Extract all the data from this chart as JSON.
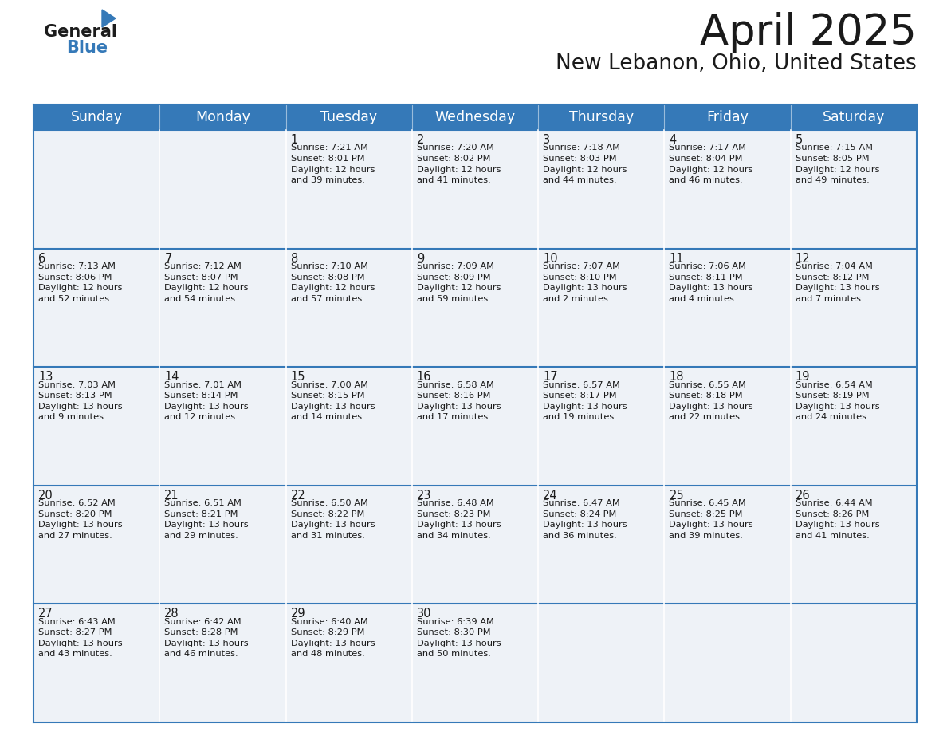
{
  "title": "April 2025",
  "subtitle": "New Lebanon, Ohio, United States",
  "header_color": "#3579b8",
  "header_text_color": "#ffffff",
  "cell_bg_color": "#eef2f7",
  "separator_color": "#3579b8",
  "text_color": "#1a1a1a",
  "day_names": [
    "Sunday",
    "Monday",
    "Tuesday",
    "Wednesday",
    "Thursday",
    "Friday",
    "Saturday"
  ],
  "days": [
    {
      "day": 1,
      "col": 2,
      "row": 0,
      "sunrise": "7:21 AM",
      "sunset": "8:01 PM",
      "daylight_h": "12 hours",
      "daylight_m": "and 39 minutes."
    },
    {
      "day": 2,
      "col": 3,
      "row": 0,
      "sunrise": "7:20 AM",
      "sunset": "8:02 PM",
      "daylight_h": "12 hours",
      "daylight_m": "and 41 minutes."
    },
    {
      "day": 3,
      "col": 4,
      "row": 0,
      "sunrise": "7:18 AM",
      "sunset": "8:03 PM",
      "daylight_h": "12 hours",
      "daylight_m": "and 44 minutes."
    },
    {
      "day": 4,
      "col": 5,
      "row": 0,
      "sunrise": "7:17 AM",
      "sunset": "8:04 PM",
      "daylight_h": "12 hours",
      "daylight_m": "and 46 minutes."
    },
    {
      "day": 5,
      "col": 6,
      "row": 0,
      "sunrise": "7:15 AM",
      "sunset": "8:05 PM",
      "daylight_h": "12 hours",
      "daylight_m": "and 49 minutes."
    },
    {
      "day": 6,
      "col": 0,
      "row": 1,
      "sunrise": "7:13 AM",
      "sunset": "8:06 PM",
      "daylight_h": "12 hours",
      "daylight_m": "and 52 minutes."
    },
    {
      "day": 7,
      "col": 1,
      "row": 1,
      "sunrise": "7:12 AM",
      "sunset": "8:07 PM",
      "daylight_h": "12 hours",
      "daylight_m": "and 54 minutes."
    },
    {
      "day": 8,
      "col": 2,
      "row": 1,
      "sunrise": "7:10 AM",
      "sunset": "8:08 PM",
      "daylight_h": "12 hours",
      "daylight_m": "and 57 minutes."
    },
    {
      "day": 9,
      "col": 3,
      "row": 1,
      "sunrise": "7:09 AM",
      "sunset": "8:09 PM",
      "daylight_h": "12 hours",
      "daylight_m": "and 59 minutes."
    },
    {
      "day": 10,
      "col": 4,
      "row": 1,
      "sunrise": "7:07 AM",
      "sunset": "8:10 PM",
      "daylight_h": "13 hours",
      "daylight_m": "and 2 minutes."
    },
    {
      "day": 11,
      "col": 5,
      "row": 1,
      "sunrise": "7:06 AM",
      "sunset": "8:11 PM",
      "daylight_h": "13 hours",
      "daylight_m": "and 4 minutes."
    },
    {
      "day": 12,
      "col": 6,
      "row": 1,
      "sunrise": "7:04 AM",
      "sunset": "8:12 PM",
      "daylight_h": "13 hours",
      "daylight_m": "and 7 minutes."
    },
    {
      "day": 13,
      "col": 0,
      "row": 2,
      "sunrise": "7:03 AM",
      "sunset": "8:13 PM",
      "daylight_h": "13 hours",
      "daylight_m": "and 9 minutes."
    },
    {
      "day": 14,
      "col": 1,
      "row": 2,
      "sunrise": "7:01 AM",
      "sunset": "8:14 PM",
      "daylight_h": "13 hours",
      "daylight_m": "and 12 minutes."
    },
    {
      "day": 15,
      "col": 2,
      "row": 2,
      "sunrise": "7:00 AM",
      "sunset": "8:15 PM",
      "daylight_h": "13 hours",
      "daylight_m": "and 14 minutes."
    },
    {
      "day": 16,
      "col": 3,
      "row": 2,
      "sunrise": "6:58 AM",
      "sunset": "8:16 PM",
      "daylight_h": "13 hours",
      "daylight_m": "and 17 minutes."
    },
    {
      "day": 17,
      "col": 4,
      "row": 2,
      "sunrise": "6:57 AM",
      "sunset": "8:17 PM",
      "daylight_h": "13 hours",
      "daylight_m": "and 19 minutes."
    },
    {
      "day": 18,
      "col": 5,
      "row": 2,
      "sunrise": "6:55 AM",
      "sunset": "8:18 PM",
      "daylight_h": "13 hours",
      "daylight_m": "and 22 minutes."
    },
    {
      "day": 19,
      "col": 6,
      "row": 2,
      "sunrise": "6:54 AM",
      "sunset": "8:19 PM",
      "daylight_h": "13 hours",
      "daylight_m": "and 24 minutes."
    },
    {
      "day": 20,
      "col": 0,
      "row": 3,
      "sunrise": "6:52 AM",
      "sunset": "8:20 PM",
      "daylight_h": "13 hours",
      "daylight_m": "and 27 minutes."
    },
    {
      "day": 21,
      "col": 1,
      "row": 3,
      "sunrise": "6:51 AM",
      "sunset": "8:21 PM",
      "daylight_h": "13 hours",
      "daylight_m": "and 29 minutes."
    },
    {
      "day": 22,
      "col": 2,
      "row": 3,
      "sunrise": "6:50 AM",
      "sunset": "8:22 PM",
      "daylight_h": "13 hours",
      "daylight_m": "and 31 minutes."
    },
    {
      "day": 23,
      "col": 3,
      "row": 3,
      "sunrise": "6:48 AM",
      "sunset": "8:23 PM",
      "daylight_h": "13 hours",
      "daylight_m": "and 34 minutes."
    },
    {
      "day": 24,
      "col": 4,
      "row": 3,
      "sunrise": "6:47 AM",
      "sunset": "8:24 PM",
      "daylight_h": "13 hours",
      "daylight_m": "and 36 minutes."
    },
    {
      "day": 25,
      "col": 5,
      "row": 3,
      "sunrise": "6:45 AM",
      "sunset": "8:25 PM",
      "daylight_h": "13 hours",
      "daylight_m": "and 39 minutes."
    },
    {
      "day": 26,
      "col": 6,
      "row": 3,
      "sunrise": "6:44 AM",
      "sunset": "8:26 PM",
      "daylight_h": "13 hours",
      "daylight_m": "and 41 minutes."
    },
    {
      "day": 27,
      "col": 0,
      "row": 4,
      "sunrise": "6:43 AM",
      "sunset": "8:27 PM",
      "daylight_h": "13 hours",
      "daylight_m": "and 43 minutes."
    },
    {
      "day": 28,
      "col": 1,
      "row": 4,
      "sunrise": "6:42 AM",
      "sunset": "8:28 PM",
      "daylight_h": "13 hours",
      "daylight_m": "and 46 minutes."
    },
    {
      "day": 29,
      "col": 2,
      "row": 4,
      "sunrise": "6:40 AM",
      "sunset": "8:29 PM",
      "daylight_h": "13 hours",
      "daylight_m": "and 48 minutes."
    },
    {
      "day": 30,
      "col": 3,
      "row": 4,
      "sunrise": "6:39 AM",
      "sunset": "8:30 PM",
      "daylight_h": "13 hours",
      "daylight_m": "and 50 minutes."
    }
  ],
  "num_rows": 5,
  "num_cols": 7,
  "title_fontsize": 38,
  "subtitle_fontsize": 19,
  "day_num_fontsize": 10.5,
  "cell_text_fontsize": 8.2,
  "header_fontsize": 12.5
}
